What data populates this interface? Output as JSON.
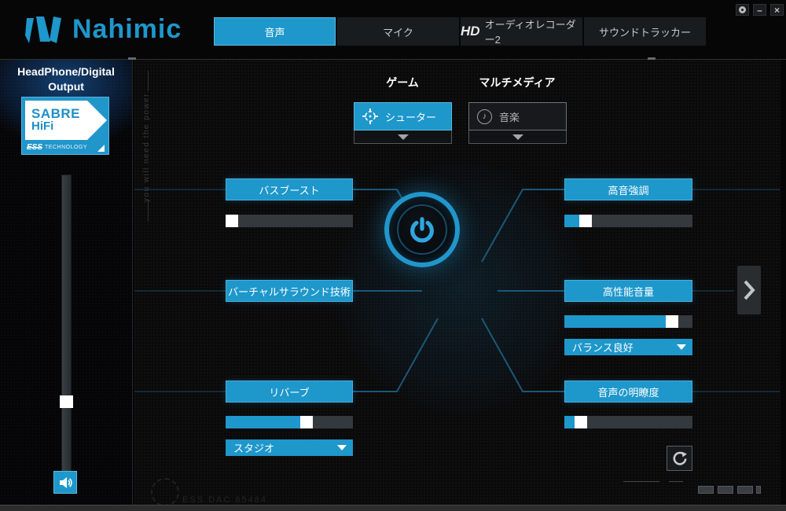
{
  "brand": {
    "name": "Nahimic"
  },
  "window_controls": {
    "minimize_glyph": "–",
    "close_glyph": "×"
  },
  "tabs": [
    {
      "label": "音声",
      "active": true
    },
    {
      "label": "マイク",
      "active": false
    },
    {
      "prefix": "HD",
      "label": "オーディオレコーダー2",
      "active": false
    },
    {
      "label": "サウンドトラッカー",
      "active": false
    }
  ],
  "sidebar": {
    "output_line1": "HeadPhone/Digital",
    "output_line2": "Output",
    "badge": {
      "line1": "SABRE",
      "line2": "HiFi",
      "footer_brand": "ESS",
      "footer_text": "TECHNOLOGY"
    },
    "volume_percent": 24
  },
  "profiles": {
    "game_label": "ゲーム",
    "game_value": "シューター",
    "multimedia_label": "マルチメディア",
    "multimedia_value": "音楽",
    "music_icon_glyph": "♪"
  },
  "effects": {
    "bass_boost": {
      "label": "バスブースト",
      "value": 0
    },
    "virtual_surround": {
      "label": "バーチャルサラウンド技術"
    },
    "reverb": {
      "label": "リバーブ",
      "value": 65,
      "preset": "スタジオ"
    },
    "treble": {
      "label": "高音強調",
      "value": 13
    },
    "smart_volume": {
      "label": "高性能音量",
      "value": 88,
      "preset": "バランス良好"
    },
    "voice_clarity": {
      "label": "音声の明瞭度",
      "value": 9
    }
  },
  "watermarks": {
    "vertical_text": "you will need the power",
    "dac_text": "ESS DAC 85484"
  },
  "colors": {
    "accent": "#1e97cb",
    "accent_bright": "#35aadf",
    "track": "#34393e",
    "thumb": "#ffffff"
  }
}
